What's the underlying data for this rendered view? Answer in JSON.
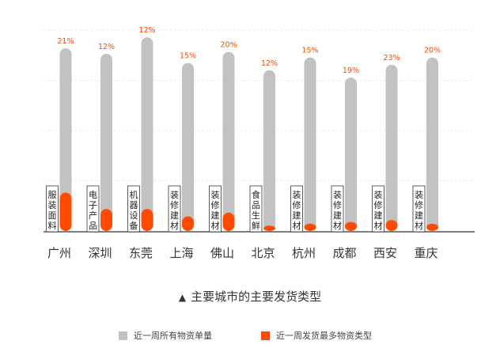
{
  "chart_data": {
    "type": "bar",
    "categories": [
      "广州",
      "深圳",
      "东莞",
      "上海",
      "佛山",
      "北京",
      "杭州",
      "成都",
      "西安",
      "重庆"
    ],
    "series": [
      {
        "name": "近一周所有物资单量",
        "color": "#c2c2c2",
        "values": [
          100,
          97,
          106,
          92,
          98,
          88,
          95,
          84,
          91,
          95
        ]
      },
      {
        "name": "近一周发货最多物资类型",
        "color": "#ff4a00",
        "values": [
          21,
          12,
          12,
          8,
          10,
          2,
          4,
          5,
          6,
          4
        ]
      }
    ],
    "percent_labels": [
      "21%",
      "12%",
      "12%",
      "15%",
      "20%",
      "12%",
      "15%",
      "19%",
      "23%",
      "20%"
    ],
    "type_labels": [
      "服装面料",
      "电子产品",
      "机器设备",
      "装修建材",
      "装修建材",
      "食品生鲜",
      "装修建材",
      "装修建材",
      "装修建材",
      "装修建材"
    ],
    "title": "主要城市的主要发货类型",
    "ylim": [
      0,
      110
    ],
    "grid": true,
    "legend_position": "bottom"
  }
}
